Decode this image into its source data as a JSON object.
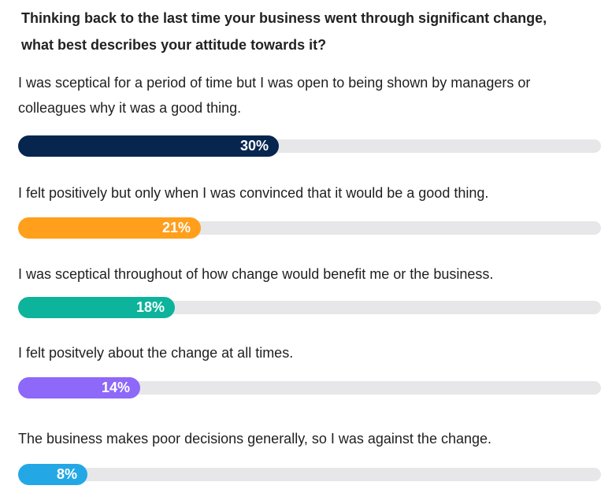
{
  "question": {
    "line1": "Thinking back to the last time your business went through significant change,",
    "line2": "what best describes your attitude towards it?"
  },
  "items": [
    {
      "label_lines": [
        "I was sceptical for a period of time but I was open to being shown by managers or",
        "colleagues why it was a good thing."
      ],
      "percent_label": "30%"
    },
    {
      "label_lines": [
        "I felt positively but only when I was convinced that it would be a good thing."
      ],
      "percent_label": "21%"
    },
    {
      "label_lines": [
        "I was sceptical throughout of how change would benefit me or the business."
      ],
      "percent_label": "18%"
    },
    {
      "label_lines": [
        "I felt positvely about the change at all times."
      ],
      "percent_label": "14%"
    },
    {
      "label_lines": [
        "The business makes poor decisions generally, so I was against the change."
      ],
      "percent_label": "8%"
    }
  ],
  "colors": {
    "track": "#e7e7ea",
    "bars": [
      "#062650",
      "#ff9f1c",
      "#0db39a",
      "#8d68f9",
      "#24a8e5"
    ]
  },
  "chart_data": {
    "type": "bar",
    "orientation": "horizontal",
    "categories": [
      "I was sceptical for a period of time but I was open to being shown by managers or colleagues why it was a good thing.",
      "I felt positively but only when I was convinced that it would be a good thing.",
      "I was sceptical throughout of how change would benefit me or the business.",
      "I felt positvely about the change at all times.",
      "The business makes poor decisions generally, so I was against the change."
    ],
    "values": [
      30,
      21,
      18,
      14,
      8
    ],
    "unit": "%",
    "xlim": [
      0,
      67
    ],
    "grid": false,
    "legend": "none"
  }
}
